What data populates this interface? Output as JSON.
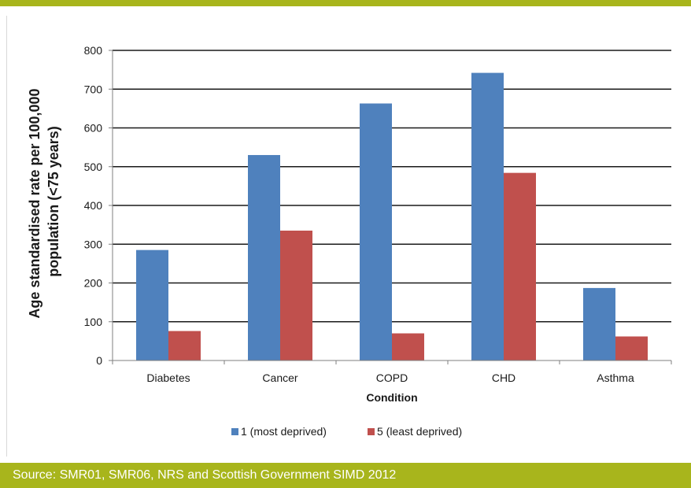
{
  "colors": {
    "accent_bar": "#a8b51c",
    "series_1": "#4f81bd",
    "series_2": "#c0504d"
  },
  "footer": {
    "source_text": "Source: SMR01, SMR06, NRS and Scottish Government SIMD 2012"
  },
  "chart_data": {
    "type": "bar",
    "title": "",
    "xlabel": "Condition",
    "ylabel_lines": [
      "Age standardised rate per 100,000",
      "population (<75 years)"
    ],
    "categories": [
      "Diabetes",
      "Cancer",
      "COPD",
      "CHD",
      "Asthma"
    ],
    "series": [
      {
        "name": "1 (most deprived)",
        "values": [
          285,
          530,
          663,
          742,
          187
        ]
      },
      {
        "name": "5 (least deprived)",
        "values": [
          76,
          335,
          70,
          484,
          62
        ]
      }
    ],
    "ylim": [
      0,
      800
    ],
    "yticks": [
      0,
      100,
      200,
      300,
      400,
      500,
      600,
      700,
      800
    ],
    "grid": true,
    "legend_position": "bottom"
  }
}
